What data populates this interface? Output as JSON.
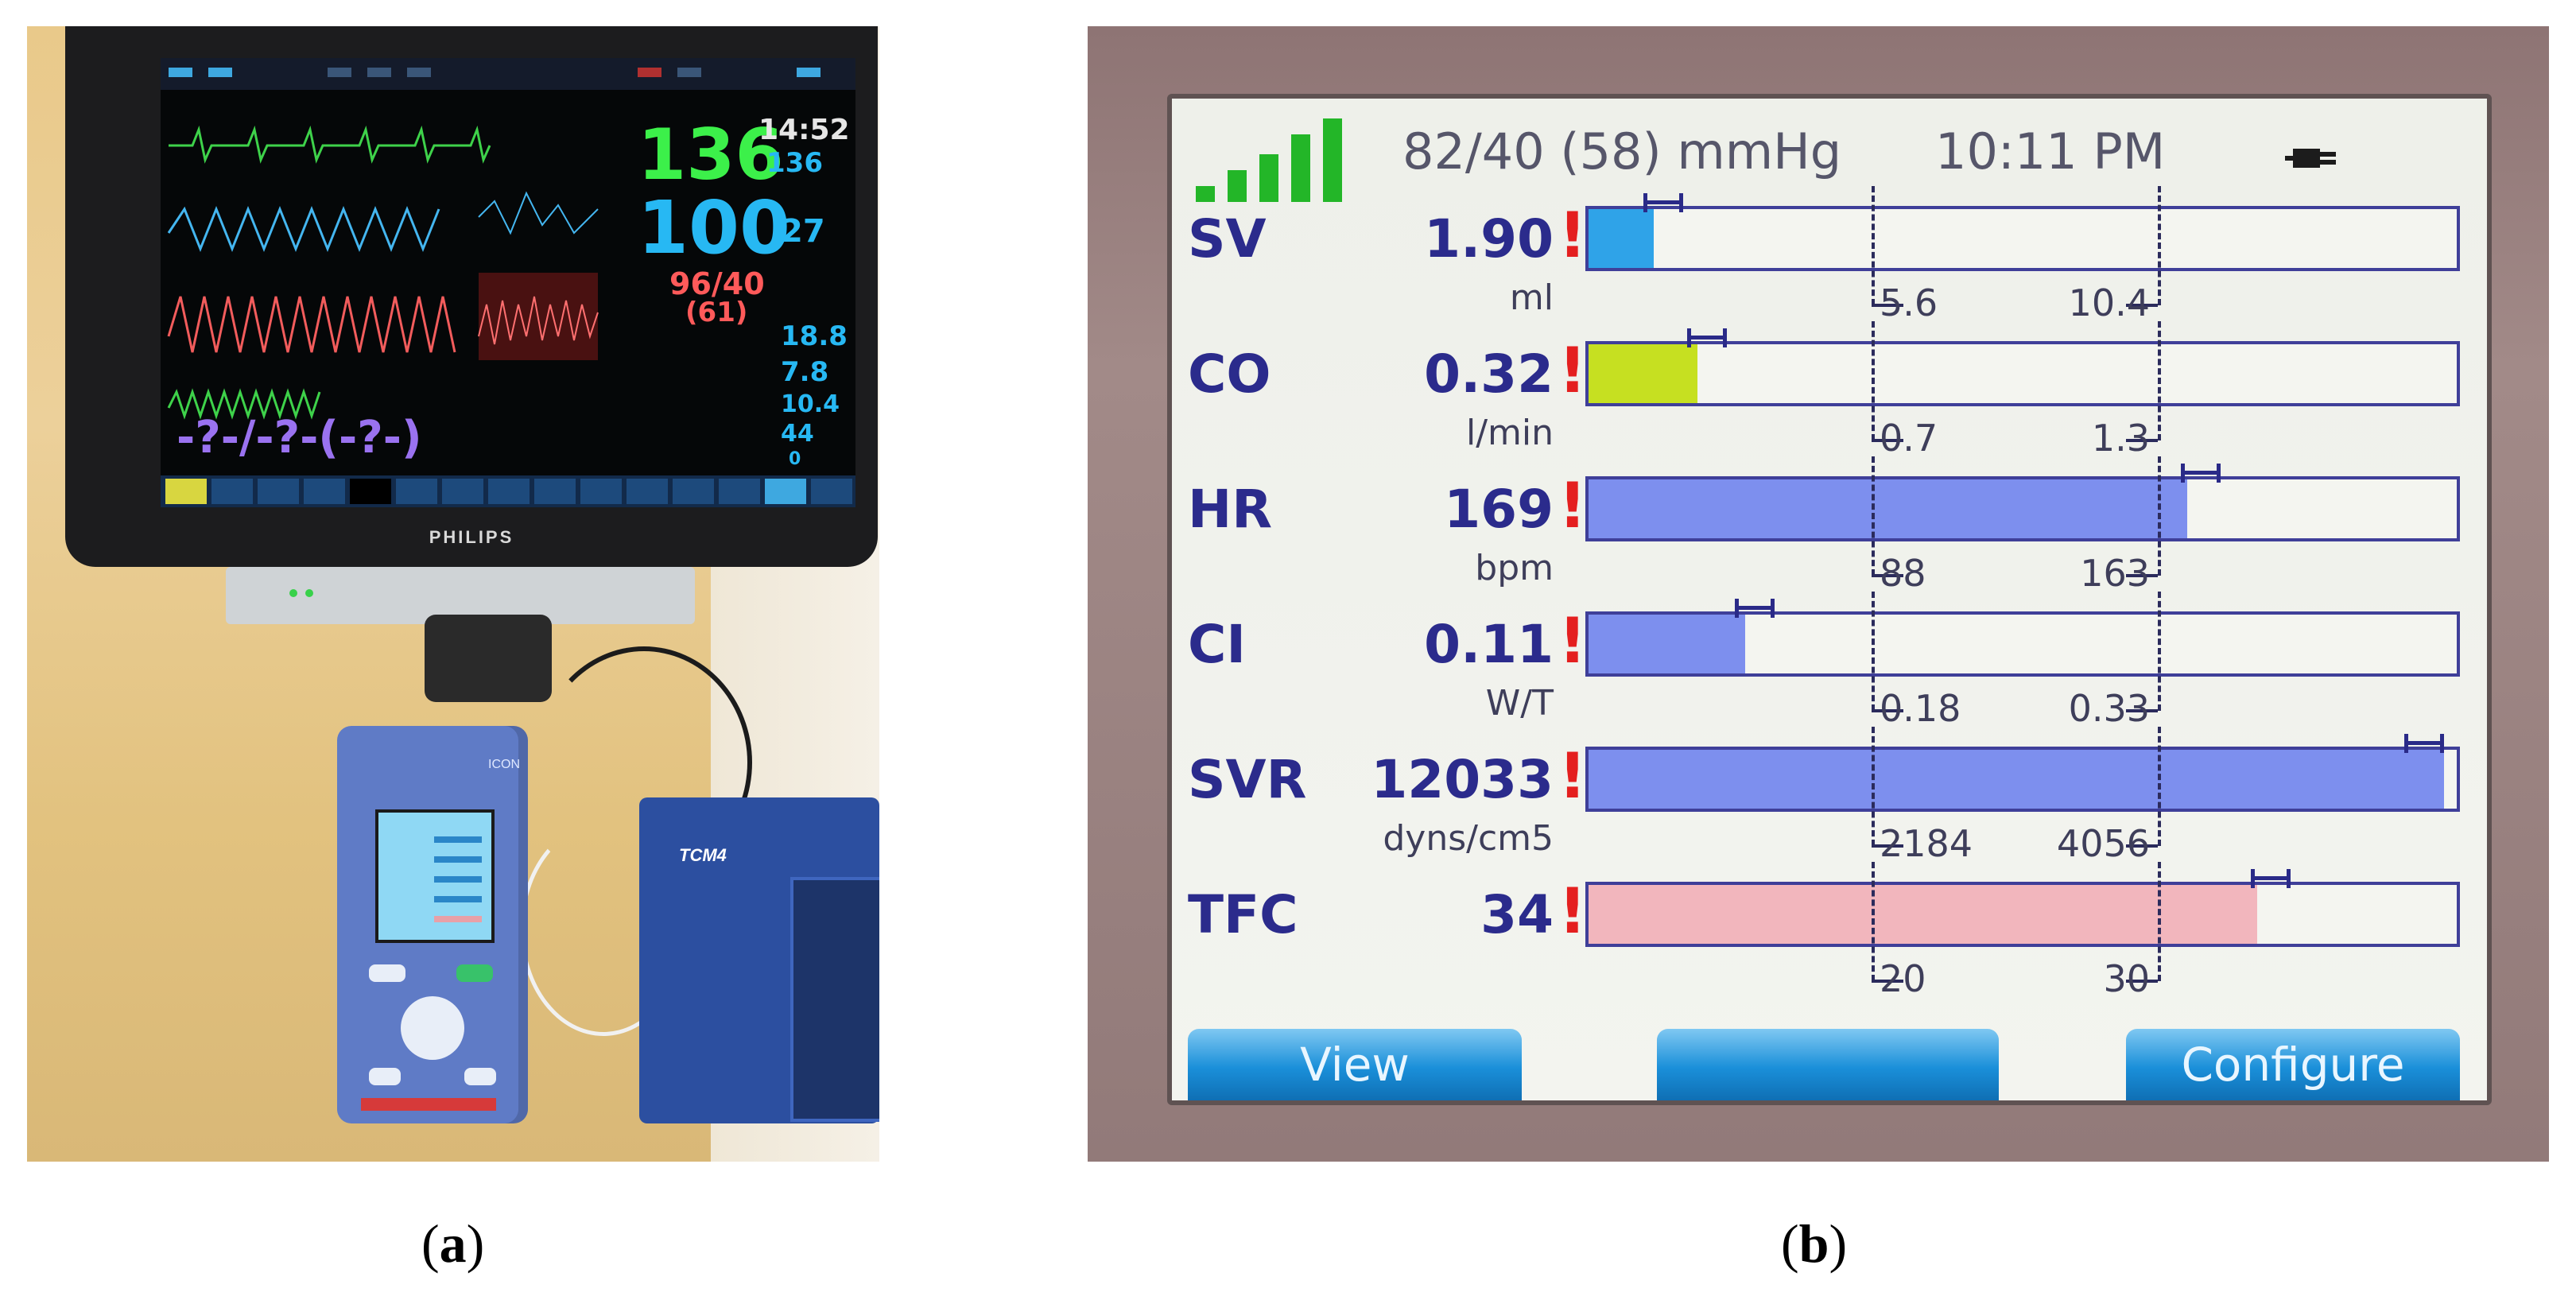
{
  "panel_a": {
    "caption": "a",
    "monitor": {
      "brand": "PHILIPS",
      "vitals": {
        "hr": "136",
        "spo2": "100",
        "nibp": "96/40",
        "nibp_mean": "(61)",
        "clock": "14:52",
        "hr_small": "136",
        "resp": "27",
        "v1": "18.8",
        "v2": "7.8",
        "v3": "10.4",
        "v4": "44",
        "v5": "0",
        "art_placeholder": "-?-/-?-(-?-)"
      }
    },
    "icon_device": {
      "brand": "ICON"
    },
    "tcm_device": {
      "label": "TCM4"
    },
    "colors": {
      "hr_green": "#3cf04a",
      "spo2_cyan": "#27b8f3",
      "nibp_red": "#ff5a5a",
      "art_purple": "#9a72f0"
    }
  },
  "panel_b": {
    "caption": "b",
    "status": {
      "bp": "82/40 (58) mmHg",
      "time": "10:11 PM",
      "icons": [
        "signal-strength-icon",
        "power-plug-icon"
      ]
    },
    "params": [
      {
        "label": "SV",
        "value": "1.90",
        "alert": "!",
        "unit": "ml",
        "low": "5.6",
        "high": "10.4",
        "fill_fraction": 0.075,
        "color": "#2fa3e8"
      },
      {
        "label": "CO",
        "value": "0.32",
        "alert": "!",
        "unit": "l/min",
        "low": "0.7",
        "high": "1.3",
        "fill_fraction": 0.125,
        "color": "#c6e021"
      },
      {
        "label": "HR",
        "value": "169",
        "alert": "!",
        "unit": "bpm",
        "low": "88",
        "high": "163",
        "fill_fraction": 0.69,
        "color": "#7d8fee"
      },
      {
        "label": "CI",
        "value": "0.11",
        "alert": "!",
        "unit": "W/T",
        "low": "0.18",
        "high": "0.33",
        "fill_fraction": 0.18,
        "color": "#7d8fee"
      },
      {
        "label": "SVR",
        "value": "12033",
        "alert": "!",
        "unit": "dyns/cm5",
        "low": "2184",
        "high": "4056",
        "fill_fraction": 0.985,
        "color": "#7d8fee"
      },
      {
        "label": "TFC",
        "value": "34",
        "alert": "!",
        "unit": "",
        "low": "20",
        "high": "30",
        "fill_fraction": 0.77,
        "color": "#f2b6bd"
      }
    ],
    "softkeys": {
      "left": "View",
      "middle": "",
      "right": "Configure"
    }
  }
}
